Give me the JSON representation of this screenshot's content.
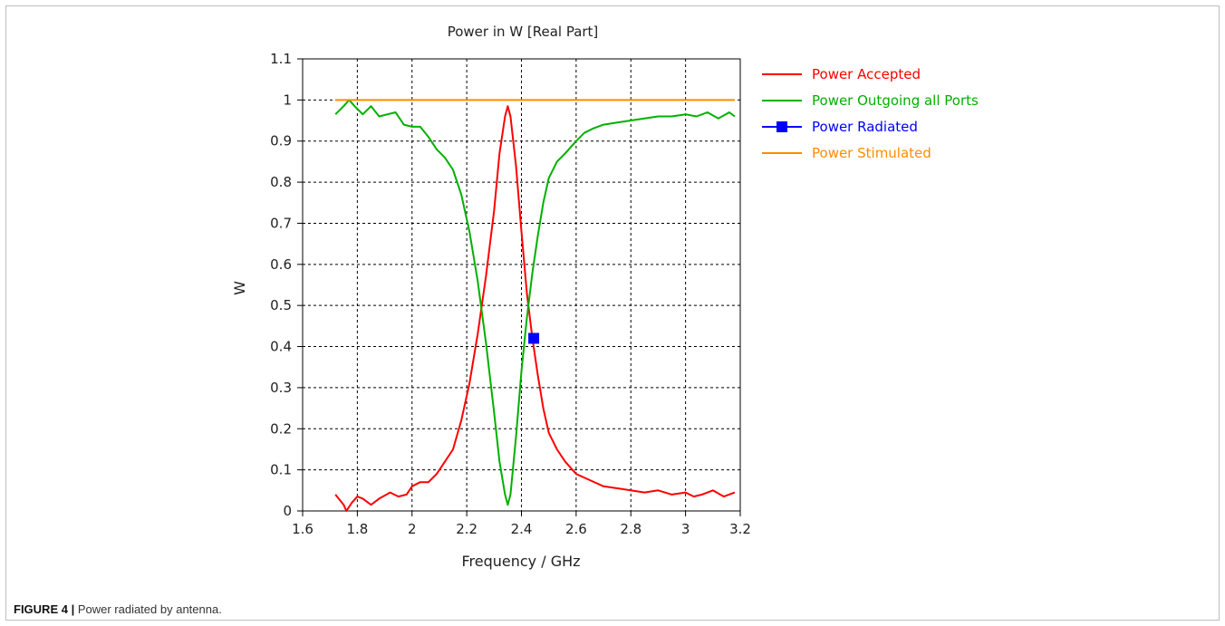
{
  "caption": {
    "label": "FIGURE 4 |",
    "text": " Power radiated by antenna."
  },
  "chart_data": {
    "type": "line",
    "title": "Power in W [Real Part]",
    "xlabel": "Frequency / GHz",
    "ylabel": "W",
    "xlim": [
      1.6,
      3.2
    ],
    "ylim": [
      0,
      1.1
    ],
    "xticks": [
      1.6,
      1.8,
      2.0,
      2.2,
      2.4,
      2.6,
      2.8,
      3.0,
      3.2
    ],
    "xtick_labels": [
      "1.6",
      "1.8",
      "2",
      "2.2",
      "2.4",
      "2.6",
      "2.8",
      "3",
      "3.2"
    ],
    "yticks": [
      0,
      0.1,
      0.2,
      0.3,
      0.4,
      0.5,
      0.6,
      0.7,
      0.8,
      0.9,
      1.0,
      1.1
    ],
    "ytick_labels": [
      "0",
      "0.1",
      "0.2",
      "0.3",
      "0.4",
      "0.5",
      "0.6",
      "0.7",
      "0.8",
      "0.9",
      "1",
      "1.1"
    ],
    "grid": true,
    "legend_position": "right",
    "series": [
      {
        "name": "Power Accepted",
        "color": "#ff0000",
        "marker": "none",
        "x": [
          1.72,
          1.75,
          1.76,
          1.78,
          1.8,
          1.82,
          1.85,
          1.88,
          1.92,
          1.95,
          1.98,
          2.0,
          2.03,
          2.06,
          2.09,
          2.12,
          2.15,
          2.18,
          2.21,
          2.24,
          2.27,
          2.3,
          2.32,
          2.34,
          2.35,
          2.36,
          2.38,
          2.4,
          2.42,
          2.44,
          2.46,
          2.48,
          2.5,
          2.53,
          2.56,
          2.6,
          2.65,
          2.7,
          2.75,
          2.8,
          2.85,
          2.9,
          2.95,
          3.0,
          3.03,
          3.06,
          3.1,
          3.14,
          3.18
        ],
        "values": [
          0.04,
          0.015,
          0.0,
          0.02,
          0.035,
          0.03,
          0.015,
          0.03,
          0.045,
          0.035,
          0.04,
          0.06,
          0.07,
          0.07,
          0.09,
          0.12,
          0.15,
          0.22,
          0.31,
          0.43,
          0.57,
          0.73,
          0.87,
          0.96,
          0.985,
          0.96,
          0.84,
          0.68,
          0.53,
          0.42,
          0.33,
          0.25,
          0.19,
          0.15,
          0.12,
          0.09,
          0.075,
          0.06,
          0.055,
          0.05,
          0.045,
          0.05,
          0.04,
          0.045,
          0.035,
          0.04,
          0.05,
          0.035,
          0.045
        ]
      },
      {
        "name": "Power Outgoing all Ports",
        "color": "#00b000",
        "marker": "none",
        "x": [
          1.72,
          1.75,
          1.77,
          1.79,
          1.82,
          1.85,
          1.88,
          1.91,
          1.94,
          1.97,
          2.0,
          2.03,
          2.06,
          2.09,
          2.12,
          2.15,
          2.18,
          2.21,
          2.24,
          2.27,
          2.3,
          2.32,
          2.34,
          2.35,
          2.36,
          2.38,
          2.4,
          2.42,
          2.44,
          2.46,
          2.48,
          2.5,
          2.53,
          2.56,
          2.6,
          2.63,
          2.66,
          2.7,
          2.75,
          2.8,
          2.85,
          2.9,
          2.95,
          3.0,
          3.04,
          3.08,
          3.12,
          3.16,
          3.18
        ],
        "values": [
          0.965,
          0.985,
          1.0,
          0.985,
          0.965,
          0.985,
          0.96,
          0.965,
          0.97,
          0.94,
          0.935,
          0.935,
          0.91,
          0.88,
          0.86,
          0.83,
          0.77,
          0.68,
          0.56,
          0.41,
          0.24,
          0.12,
          0.04,
          0.015,
          0.04,
          0.18,
          0.34,
          0.47,
          0.58,
          0.67,
          0.75,
          0.81,
          0.85,
          0.87,
          0.9,
          0.92,
          0.93,
          0.94,
          0.945,
          0.95,
          0.955,
          0.96,
          0.96,
          0.965,
          0.96,
          0.97,
          0.955,
          0.97,
          0.96
        ]
      },
      {
        "name": "Power Radiated",
        "color": "#0000ff",
        "marker": "square",
        "x": [
          2.445
        ],
        "values": [
          0.42
        ]
      },
      {
        "name": "Power Stimulated",
        "color": "#ff8c00",
        "marker": "none",
        "x": [
          1.72,
          3.18
        ],
        "values": [
          1.0,
          1.0
        ]
      }
    ]
  }
}
